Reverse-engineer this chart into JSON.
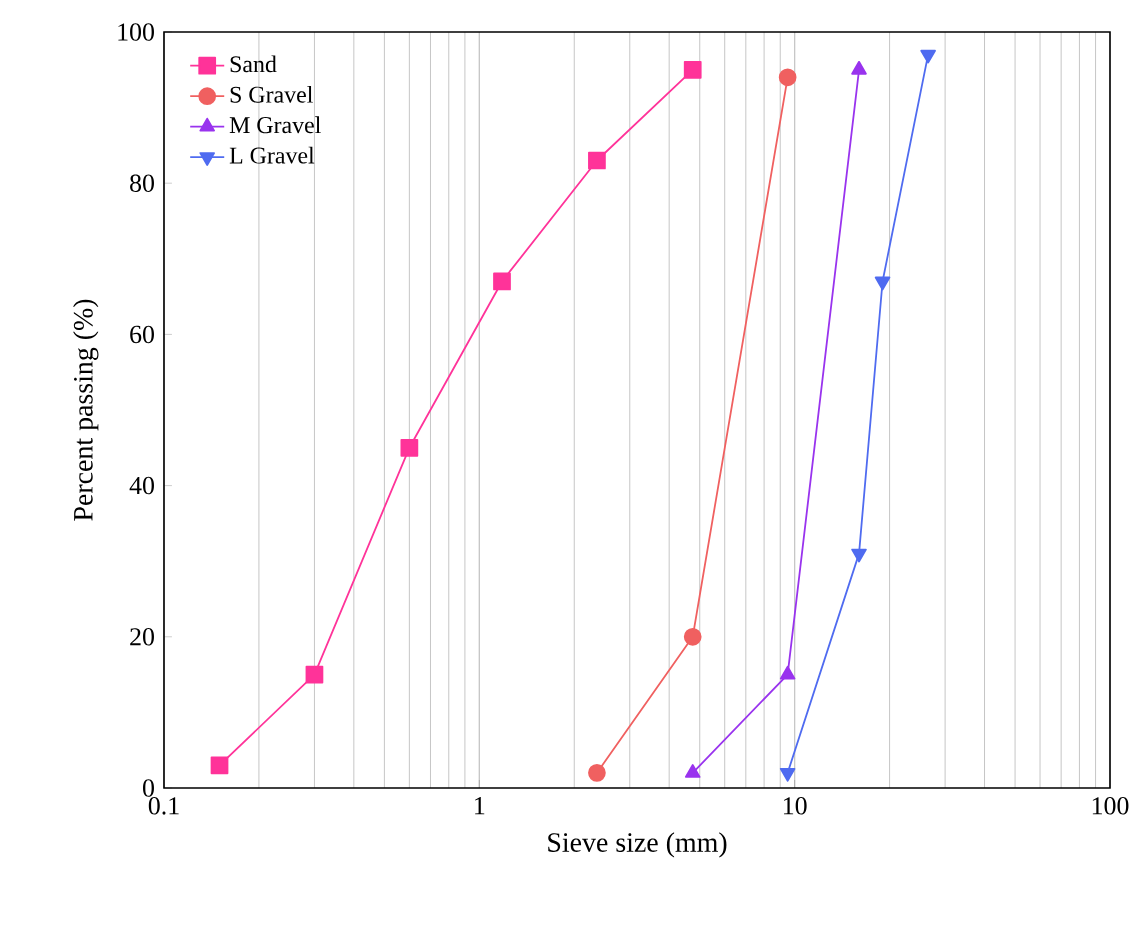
{
  "chart_data": {
    "type": "line",
    "xlabel": "Sieve size (mm)",
    "ylabel": "Percent passing (%)",
    "log": "x",
    "xlim": [
      0.1,
      100
    ],
    "xticks": [
      0.1,
      1,
      10,
      100
    ],
    "ylim": [
      0,
      100
    ],
    "yticks": [
      0,
      20,
      40,
      60,
      80,
      100
    ],
    "grid": "x",
    "legend": "top left",
    "line_style": "solid",
    "series": [
      {
        "name": "Sand",
        "color": "#ff3399",
        "marker": "square",
        "x": [
          0.15,
          0.3,
          0.6,
          1.18,
          2.36,
          4.75
        ],
        "values": [
          3,
          15,
          45,
          67,
          83,
          95
        ]
      },
      {
        "name": "S Gravel",
        "color": "#f06060",
        "marker": "circle",
        "x": [
          2.36,
          4.75,
          9.5
        ],
        "values": [
          2,
          20,
          94
        ]
      },
      {
        "name": "M Gravel",
        "color": "#9933ee",
        "marker": "triangle",
        "x": [
          4.75,
          9.5,
          16
        ],
        "values": [
          2,
          15,
          95
        ]
      },
      {
        "name": "L Gravel",
        "color": "#4f6bf0",
        "marker": "triangle down",
        "x": [
          9.5,
          16,
          19,
          26.5
        ],
        "values": [
          2,
          31,
          67,
          97
        ]
      }
    ]
  }
}
